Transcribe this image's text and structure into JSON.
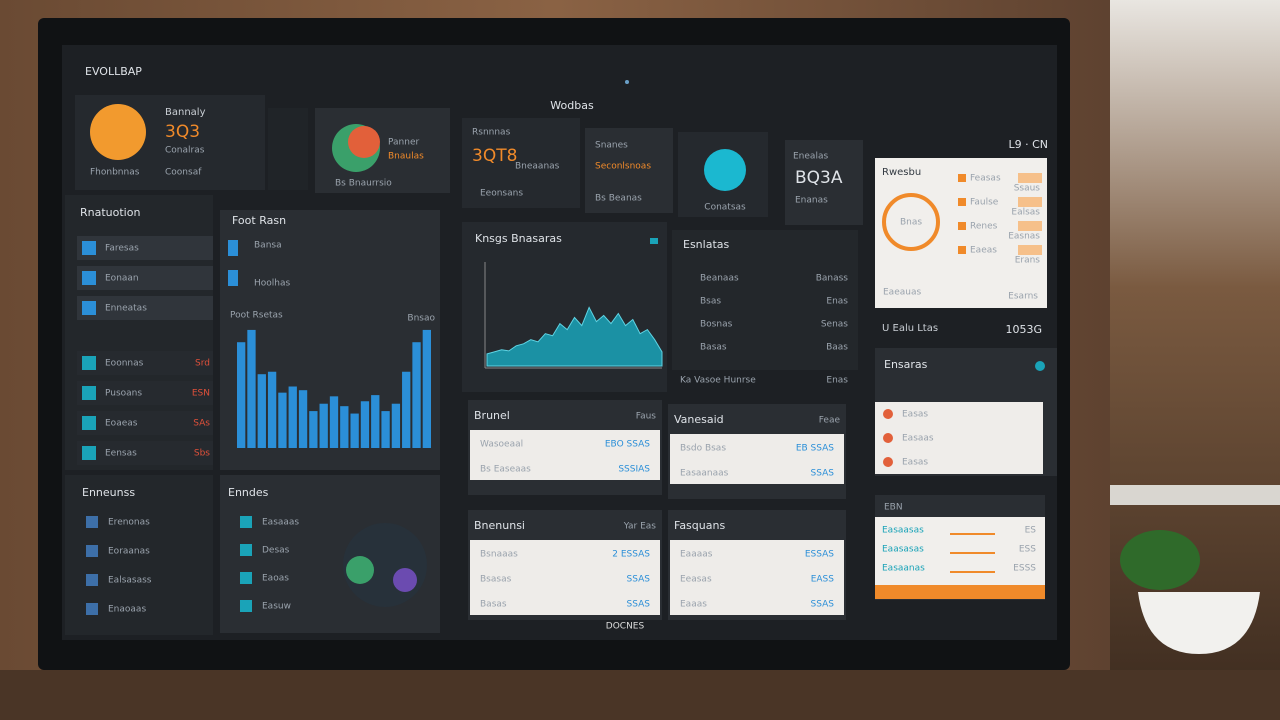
{
  "header": {
    "title": "EVOLLBAP",
    "center": "Wodbas",
    "status": "L9 · CN"
  },
  "tiles": [
    {
      "title": "Bannaly",
      "value": "3Q3",
      "sub": "Conalras",
      "footer": "Fhonbnnas",
      "extra": "Coonsaf"
    },
    {
      "title": "Panner",
      "sub": "Bnaulas",
      "footer": "Bs Bnaurrsio"
    },
    {
      "title": "Rsnnnas",
      "value": "3QT8",
      "sub": "Bneaanas",
      "footer": "Eeonsans"
    },
    {
      "title": "Snanes",
      "sub": "Seconlsnoas",
      "footer": "Bs Beanas"
    },
    {
      "footer": "Conatsas"
    },
    {
      "title": "Enealas",
      "value": "BQ3A",
      "sub": "Enanas"
    }
  ],
  "summary_card": {
    "title": "Rwesbu",
    "ring": "Bnas",
    "rows": [
      "Feasas",
      "Faulse",
      "Renes",
      "Eaeas"
    ],
    "values": [
      "Ssaus",
      "Ealsas",
      "Easnas",
      "Erans"
    ],
    "footer": "Eaeauas",
    "footer_value": "Esarns"
  },
  "stat": {
    "label": "U Ealu Ltas",
    "value": "1053G"
  },
  "left_panel": {
    "title": "Rnatuotion",
    "rows": [
      "Faresas",
      "Eonaan",
      "Enneatas",
      "Eoonnas",
      "Pusoans",
      "Eoaeas",
      "Eensas"
    ],
    "values": [
      "Srd",
      "ESN",
      "SAs",
      "Sbs"
    ]
  },
  "bar_panel": {
    "title": "Foot Rasn",
    "rows": [
      "Bansa",
      "Hoolhas"
    ],
    "chart_title": "Poot Rsetas",
    "chart_note": "Bnsao"
  },
  "area_panel": {
    "title": "Knsgs Bnasaras",
    "footer": "Ka Vasoe Hunrse",
    "footer_value": "Enas"
  },
  "list_panel": {
    "title": "Esnlatas",
    "rows": [
      "Beanaas",
      "Bsas",
      "Bosnas",
      "Basas"
    ],
    "values": [
      "Banass",
      "Enas",
      "Senas",
      "Baas"
    ]
  },
  "tables": [
    {
      "title": "Brunel",
      "status": "Faus",
      "rows": [
        "Wasoeaal",
        "Bs Easeaas"
      ],
      "values": [
        "EBO SSAS",
        "SSSIAS"
      ]
    },
    {
      "title": "Vanesaid",
      "status": "Feae",
      "rows": [
        "Bsdo Bsas",
        "Easaanaas"
      ],
      "values": [
        "EB SSAS",
        "SSAS"
      ]
    },
    {
      "title": "Bnenunsi",
      "status": "Yar Eas",
      "rows": [
        "Bsnaaas",
        "Bsasas",
        "Basas"
      ],
      "values": [
        "2 ESSAS",
        "SSAS",
        "SSAS"
      ]
    },
    {
      "title": "Fasquans",
      "status": "",
      "rows": [
        "Eaaaas",
        "Eeasas",
        "Eaaas"
      ],
      "values": [
        "ESSAS",
        "EASS",
        "SSAS"
      ]
    }
  ],
  "bottom_left": {
    "title": "Enneunss",
    "rows": [
      "Erenonas",
      "Eoraanas",
      "Ealsasass",
      "Enaoaas"
    ]
  },
  "bottom_mid": {
    "title": "Enndes",
    "rows": [
      "Easaaas",
      "Desas",
      "Eaoas",
      "Easuw"
    ]
  },
  "alerts": {
    "title": "Ensaras",
    "rows": [
      "Easas",
      "Easaas",
      "Easas"
    ]
  },
  "progress": {
    "title": "EBN",
    "rows": [
      "Easaasas",
      "Eaasasas",
      "Easaanas"
    ],
    "values": [
      "ES",
      "ESS",
      "ESSS"
    ]
  },
  "brand": "DOCNES",
  "charts": {
    "area": {
      "type": "area",
      "color": "#1aa3b8",
      "ylim": [
        0,
        100
      ],
      "values": [
        12,
        14,
        16,
        15,
        20,
        22,
        26,
        24,
        32,
        30,
        42,
        36,
        48,
        40,
        58,
        44,
        50,
        42,
        52,
        40,
        46,
        32,
        36,
        26,
        14
      ]
    },
    "bars": {
      "type": "bar",
      "color": "#2b8fd8",
      "ylim": [
        0,
        100
      ],
      "values": [
        86,
        96,
        60,
        62,
        45,
        50,
        47,
        30,
        36,
        42,
        34,
        28,
        38,
        43,
        30,
        36,
        62,
        86,
        96
      ]
    }
  }
}
